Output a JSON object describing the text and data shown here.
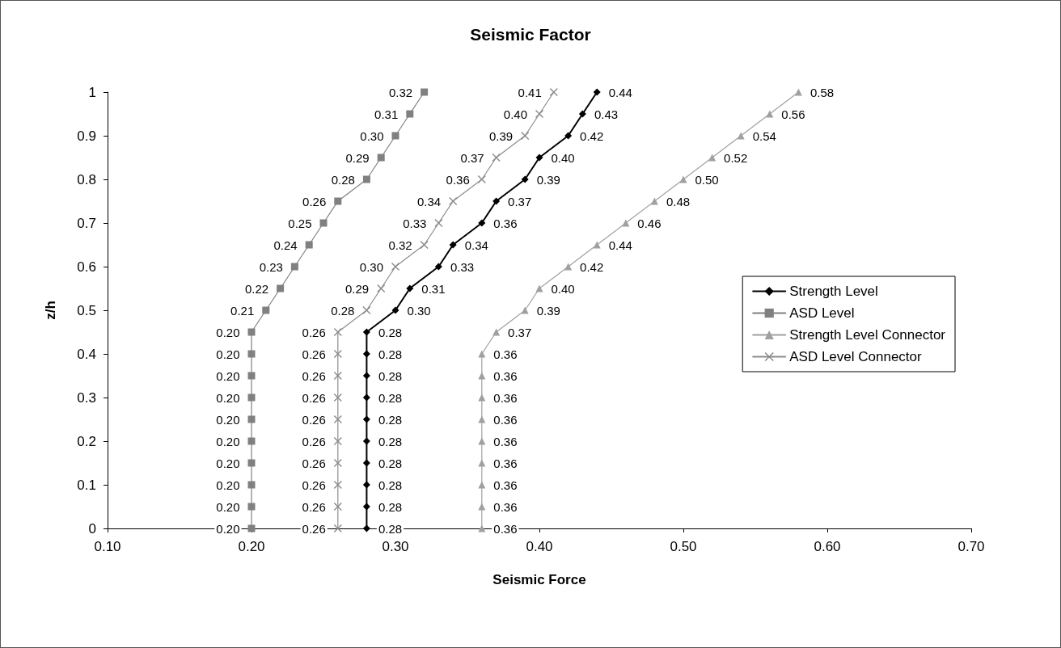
{
  "chart_data": {
    "type": "line",
    "orientation": "horizontal",
    "title": "Seismic Factor",
    "xlabel": "Seismic Force",
    "ylabel": "z/h",
    "xlim": [
      0.1,
      0.7
    ],
    "xticks": [
      {
        "value": 0.1,
        "label": "0.10"
      },
      {
        "value": 0.2,
        "label": "0.20"
      },
      {
        "value": 0.3,
        "label": "0.30"
      },
      {
        "value": 0.4,
        "label": "0.40"
      },
      {
        "value": 0.5,
        "label": "0.50"
      },
      {
        "value": 0.6,
        "label": "0.60"
      },
      {
        "value": 0.7,
        "label": "0.70"
      }
    ],
    "ylim": [
      0,
      1
    ],
    "yticks": [
      0,
      0.1,
      0.2,
      0.3,
      0.4,
      0.5,
      0.6,
      0.7,
      0.8,
      0.9,
      1
    ],
    "grid": false,
    "legend": "right",
    "line_style": "solid",
    "x": [
      0,
      0.05,
      0.1,
      0.15,
      0.2,
      0.25,
      0.3,
      0.35,
      0.4,
      0.45,
      0.5,
      0.55,
      0.6,
      0.65,
      0.7,
      0.75,
      0.8,
      0.85,
      0.9,
      0.95,
      1
    ],
    "series": [
      {
        "name": "Strength Level",
        "color": "#000000",
        "marker": "diamond",
        "values": [
          0.28,
          0.28,
          0.28,
          0.28,
          0.28,
          0.28,
          0.28,
          0.28,
          0.28,
          0.28,
          0.3,
          0.31,
          0.33,
          0.34,
          0.36,
          0.37,
          0.39,
          0.4,
          0.42,
          0.43,
          0.44
        ],
        "value_labels": [
          "0.28",
          "0.28",
          "0.28",
          "0.28",
          "0.28",
          "0.28",
          "0.28",
          "0.28",
          "0.28",
          "0.28",
          "0.30",
          "0.31",
          "0.33",
          "0.34",
          "0.36",
          "0.37",
          "0.39",
          "0.40",
          "0.42",
          "0.43",
          "0.44"
        ]
      },
      {
        "name": "ASD Level",
        "color": "#808080",
        "marker": "square",
        "values": [
          0.2,
          0.2,
          0.2,
          0.2,
          0.2,
          0.2,
          0.2,
          0.2,
          0.2,
          0.2,
          0.21,
          0.22,
          0.23,
          0.24,
          0.25,
          0.26,
          0.28,
          0.29,
          0.3,
          0.31,
          0.32
        ],
        "value_labels": [
          "0.20",
          "0.20",
          "0.20",
          "0.20",
          "0.20",
          "0.20",
          "0.20",
          "0.20",
          "0.20",
          "0.20",
          "0.21",
          "0.22",
          "0.23",
          "0.24",
          "0.25",
          "0.26",
          "0.28",
          "0.29",
          "0.30",
          "0.31",
          "0.32"
        ]
      },
      {
        "name": "Strength Level Connector",
        "color": "#a0a0a0",
        "marker": "triangle",
        "values": [
          0.36,
          0.36,
          0.36,
          0.36,
          0.36,
          0.36,
          0.36,
          0.36,
          0.36,
          0.37,
          0.39,
          0.4,
          0.42,
          0.44,
          0.46,
          0.48,
          0.5,
          0.52,
          0.54,
          0.56,
          0.58
        ],
        "value_labels": [
          "0.36",
          "0.36",
          "0.36",
          "0.36",
          "0.36",
          "0.36",
          "0.36",
          "0.36",
          "0.36",
          "0.37",
          "0.39",
          "0.40",
          "0.42",
          "0.44",
          "0.46",
          "0.48",
          "0.50",
          "0.52",
          "0.54",
          "0.56",
          "0.58"
        ]
      },
      {
        "name": "ASD Level Connector",
        "color": "#8c8c8c",
        "marker": "cross",
        "values": [
          0.26,
          0.26,
          0.26,
          0.26,
          0.26,
          0.26,
          0.26,
          0.26,
          0.26,
          0.26,
          0.28,
          0.29,
          0.3,
          0.32,
          0.33,
          0.34,
          0.36,
          0.37,
          0.39,
          0.4,
          0.41
        ],
        "value_labels": [
          "0.26",
          "0.26",
          "0.26",
          "0.26",
          "0.26",
          "0.26",
          "0.26",
          "0.26",
          "0.26",
          "0.26",
          "0.28",
          "0.29",
          "0.30",
          "0.32",
          "0.33",
          "0.34",
          "0.36",
          "0.37",
          "0.39",
          "0.40",
          "0.41"
        ]
      }
    ]
  }
}
